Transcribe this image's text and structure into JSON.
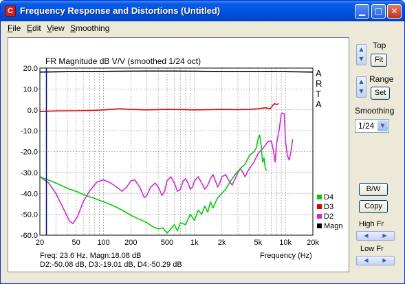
{
  "window": {
    "title": "Frequency Response and Distortions (Untitled)",
    "app_icon_letter": "C",
    "minimize_glyph": "▁",
    "maximize_glyph": "□",
    "close_glyph": "✕"
  },
  "menu": [
    {
      "hot": "F",
      "rest": "ile"
    },
    {
      "hot": "E",
      "rest": "dit"
    },
    {
      "hot": "V",
      "rest": "iew"
    },
    {
      "hot": "S",
      "rest": "moothing"
    }
  ],
  "side_panel": {
    "top_label": "Top",
    "fit_button": "Fit",
    "range_label": "Range",
    "set_button": "Set",
    "smoothing_label": "Smoothing",
    "smoothing_value": "1/24",
    "bw_button": "B/W",
    "copy_button": "Copy",
    "high_fr_label": "High Fr",
    "low_fr_label": "Low Fr",
    "spin_up": "▲",
    "spin_down": "▼",
    "spin_left": "◀",
    "spin_right": "▶",
    "combo_arrow": "▼"
  },
  "chart_data": {
    "type": "line",
    "title": "FR Magnitude dB V/V (smoothed 1/24 oct)",
    "xscale": "log",
    "xlim": [
      20,
      20000
    ],
    "ylim": [
      -60,
      20
    ],
    "xticks": [
      {
        "v": 20,
        "label": "20"
      },
      {
        "v": 50,
        "label": "50"
      },
      {
        "v": 100,
        "label": "100"
      },
      {
        "v": 200,
        "label": "200"
      },
      {
        "v": 500,
        "label": "500"
      },
      {
        "v": 1000,
        "label": "1k"
      },
      {
        "v": 2000,
        "label": "2k"
      },
      {
        "v": 5000,
        "label": "5k"
      },
      {
        "v": 10000,
        "label": "10k"
      },
      {
        "v": 20000,
        "label": "20k"
      }
    ],
    "yticks": [
      20,
      10,
      0,
      -10,
      -20,
      -30,
      -40,
      -50,
      -60
    ],
    "ytick_labels": [
      "20.0",
      "10.0",
      "0.0",
      "-10.0",
      "-20.0",
      "-30.0",
      "-40.0",
      "-50.0",
      "-60.0"
    ],
    "xlabel": "Frequency (Hz)",
    "watermark": [
      "A",
      "R",
      "T",
      "A"
    ],
    "cursor_freq": 23.6,
    "readout_line1": "Freq: 23.6 Hz, Magn:18.08 dB",
    "readout_line2": "D2:-50.08 dB, D3:-19.01 dB, D4:-50.29 dB",
    "grid": true,
    "legend_position": "bottom-right",
    "series": [
      {
        "name": "Magn",
        "color": "#000000",
        "points": [
          [
            20,
            18.1
          ],
          [
            40,
            18.3
          ],
          [
            80,
            18.4
          ],
          [
            150,
            18.5
          ],
          [
            300,
            18.6
          ],
          [
            600,
            18.6
          ],
          [
            1000,
            18.5
          ],
          [
            2000,
            18.4
          ],
          [
            4000,
            18.3
          ],
          [
            7000,
            18.4
          ],
          [
            10000,
            18.3
          ],
          [
            14000,
            18.2
          ],
          [
            20000,
            18.1
          ]
        ]
      },
      {
        "name": "D2",
        "color": "#e020e0",
        "points": [
          [
            20,
            -32
          ],
          [
            25,
            -35
          ],
          [
            30,
            -40
          ],
          [
            36,
            -47
          ],
          [
            42,
            -53
          ],
          [
            46,
            -54.5
          ],
          [
            52,
            -51
          ],
          [
            60,
            -44
          ],
          [
            70,
            -39
          ],
          [
            85,
            -34.5
          ],
          [
            100,
            -33.5
          ],
          [
            120,
            -35
          ],
          [
            140,
            -37
          ],
          [
            160,
            -39
          ],
          [
            180,
            -37
          ],
          [
            200,
            -34
          ],
          [
            220,
            -33.5
          ],
          [
            250,
            -37
          ],
          [
            280,
            -42
          ],
          [
            300,
            -41
          ],
          [
            330,
            -37
          ],
          [
            370,
            -35
          ],
          [
            400,
            -37
          ],
          [
            440,
            -41
          ],
          [
            470,
            -39
          ],
          [
            500,
            -34
          ],
          [
            550,
            -32
          ],
          [
            600,
            -35
          ],
          [
            650,
            -39
          ],
          [
            700,
            -38
          ],
          [
            750,
            -34
          ],
          [
            800,
            -33
          ],
          [
            850,
            -35
          ],
          [
            900,
            -38
          ],
          [
            950,
            -37
          ],
          [
            1000,
            -34
          ],
          [
            1100,
            -32
          ],
          [
            1200,
            -35
          ],
          [
            1300,
            -38
          ],
          [
            1400,
            -36
          ],
          [
            1500,
            -33
          ],
          [
            1600,
            -31
          ],
          [
            1700,
            -34
          ],
          [
            1800,
            -37
          ],
          [
            1900,
            -35
          ],
          [
            2000,
            -32
          ],
          [
            2200,
            -31
          ],
          [
            2400,
            -34
          ],
          [
            2600,
            -36
          ],
          [
            2800,
            -33
          ],
          [
            3000,
            -30
          ],
          [
            3200,
            -28
          ],
          [
            3400,
            -30
          ],
          [
            3600,
            -32
          ],
          [
            3900,
            -29
          ],
          [
            4200,
            -27
          ],
          [
            4500,
            -25
          ],
          [
            5000,
            -21
          ],
          [
            5500,
            -19
          ],
          [
            6000,
            -17
          ],
          [
            6500,
            -15
          ],
          [
            7000,
            -15
          ],
          [
            7400,
            -20
          ],
          [
            7700,
            -25
          ],
          [
            8000,
            -16
          ],
          [
            8500,
            -10
          ],
          [
            9000,
            -2
          ],
          [
            9300,
            -1.5
          ],
          [
            9700,
            -2
          ],
          [
            10000,
            -15
          ],
          [
            10500,
            -22
          ],
          [
            11000,
            -24
          ],
          [
            11500,
            -20
          ],
          [
            12000,
            -14
          ]
        ]
      },
      {
        "name": "D4",
        "color": "#00d000",
        "points": [
          [
            20,
            -32
          ],
          [
            30,
            -35
          ],
          [
            40,
            -37.5
          ],
          [
            50,
            -39
          ],
          [
            60,
            -40.5
          ],
          [
            80,
            -42.5
          ],
          [
            100,
            -44
          ],
          [
            130,
            -46
          ],
          [
            160,
            -48
          ],
          [
            200,
            -50.5
          ],
          [
            250,
            -52.5
          ],
          [
            300,
            -54
          ],
          [
            350,
            -56
          ],
          [
            400,
            -57
          ],
          [
            450,
            -56.5
          ],
          [
            500,
            -59
          ],
          [
            550,
            -57
          ],
          [
            600,
            -55
          ],
          [
            650,
            -58
          ],
          [
            700,
            -54
          ],
          [
            800,
            -55
          ],
          [
            900,
            -50
          ],
          [
            1000,
            -53
          ],
          [
            1100,
            -48
          ],
          [
            1200,
            -50
          ],
          [
            1300,
            -46
          ],
          [
            1400,
            -49
          ],
          [
            1500,
            -44
          ],
          [
            1600,
            -47
          ],
          [
            1800,
            -42
          ],
          [
            2000,
            -40
          ],
          [
            2200,
            -38
          ],
          [
            2500,
            -34
          ],
          [
            2800,
            -31
          ],
          [
            3200,
            -28
          ],
          [
            3600,
            -26
          ],
          [
            4000,
            -22
          ],
          [
            4500,
            -20
          ],
          [
            4800,
            -18
          ],
          [
            5000,
            -14
          ],
          [
            5200,
            -12
          ],
          [
            5400,
            -17
          ],
          [
            5600,
            -25
          ],
          [
            5800,
            -23
          ],
          [
            6000,
            -28
          ],
          [
            6200,
            -29
          ]
        ]
      },
      {
        "name": "D3",
        "color": "#e00000",
        "points": [
          [
            20,
            -0.8
          ],
          [
            30,
            -0.5
          ],
          [
            50,
            -0.4
          ],
          [
            80,
            -0.2
          ],
          [
            100,
            0
          ],
          [
            150,
            0.5
          ],
          [
            200,
            0.2
          ],
          [
            300,
            0
          ],
          [
            500,
            0.2
          ],
          [
            800,
            0.1
          ],
          [
            1000,
            0
          ],
          [
            1500,
            0.1
          ],
          [
            2000,
            0.2
          ],
          [
            3000,
            0.1
          ],
          [
            4000,
            0.2
          ],
          [
            5000,
            0.5
          ],
          [
            6000,
            1
          ],
          [
            6800,
            0.5
          ],
          [
            7200,
            2
          ],
          [
            7600,
            3
          ],
          [
            8000,
            2.5
          ],
          [
            8400,
            3
          ]
        ]
      }
    ]
  }
}
